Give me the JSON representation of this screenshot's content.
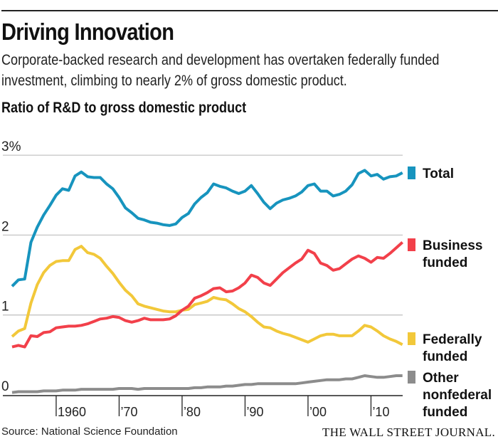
{
  "header": {
    "title": "Driving Innovation",
    "subtitle": "Corporate-backed research and development has overtaken federally funded investment, climbing to nearly 2% of gross domestic product.",
    "chart_label": "Ratio of R&D to gross domestic product"
  },
  "footer": {
    "source": "Source: National Science Foundation",
    "publisher": "THE WALL STREET JOURNAL."
  },
  "chart_data": {
    "type": "line",
    "title": "Ratio of R&D to gross domestic product",
    "xlabel": "",
    "ylabel": "",
    "xlim": [
      1953,
      2015
    ],
    "ylim": [
      0,
      3
    ],
    "y_ticks": [
      {
        "value": 3,
        "label": "3%"
      },
      {
        "value": 2,
        "label": "2"
      },
      {
        "value": 1,
        "label": "1"
      },
      {
        "value": 0,
        "label": "0"
      }
    ],
    "x_ticks": [
      {
        "value": 1960,
        "label": "1960"
      },
      {
        "value": 1970,
        "label": "’70"
      },
      {
        "value": 1980,
        "label": "’80"
      },
      {
        "value": 1990,
        "label": "’90"
      },
      {
        "value": 2000,
        "label": "’00"
      },
      {
        "value": 2010,
        "label": "’10"
      }
    ],
    "grid": true,
    "legend_placement": "right, inline at line ends",
    "start_year": 1953,
    "series": [
      {
        "name": "Total",
        "color": "#1794be",
        "values": [
          1.36,
          1.44,
          1.45,
          1.91,
          2.1,
          2.25,
          2.37,
          2.5,
          2.58,
          2.56,
          2.74,
          2.79,
          2.73,
          2.72,
          2.72,
          2.64,
          2.58,
          2.47,
          2.34,
          2.28,
          2.21,
          2.19,
          2.16,
          2.15,
          2.13,
          2.12,
          2.14,
          2.22,
          2.27,
          2.39,
          2.47,
          2.53,
          2.64,
          2.61,
          2.59,
          2.55,
          2.52,
          2.55,
          2.62,
          2.52,
          2.41,
          2.33,
          2.4,
          2.44,
          2.46,
          2.49,
          2.54,
          2.62,
          2.64,
          2.55,
          2.55,
          2.49,
          2.51,
          2.55,
          2.63,
          2.77,
          2.81,
          2.74,
          2.76,
          2.7,
          2.73,
          2.74,
          2.78
        ]
      },
      {
        "name": "Business funded",
        "color": "#f2404a",
        "values": [
          0.6,
          0.62,
          0.6,
          0.74,
          0.73,
          0.78,
          0.79,
          0.84,
          0.85,
          0.86,
          0.86,
          0.87,
          0.89,
          0.92,
          0.95,
          0.96,
          0.98,
          0.97,
          0.93,
          0.91,
          0.93,
          0.96,
          0.94,
          0.94,
          0.94,
          0.95,
          0.99,
          1.06,
          1.11,
          1.21,
          1.24,
          1.28,
          1.33,
          1.34,
          1.29,
          1.3,
          1.34,
          1.4,
          1.5,
          1.47,
          1.4,
          1.37,
          1.45,
          1.53,
          1.59,
          1.65,
          1.7,
          1.81,
          1.77,
          1.65,
          1.62,
          1.56,
          1.58,
          1.64,
          1.7,
          1.74,
          1.71,
          1.66,
          1.72,
          1.71,
          1.77,
          1.84,
          1.91
        ]
      },
      {
        "name": "Federally funded",
        "color": "#f2c83a",
        "values": [
          0.73,
          0.8,
          0.83,
          1.15,
          1.38,
          1.53,
          1.62,
          1.67,
          1.68,
          1.68,
          1.82,
          1.86,
          1.78,
          1.76,
          1.71,
          1.61,
          1.52,
          1.41,
          1.31,
          1.24,
          1.14,
          1.11,
          1.09,
          1.07,
          1.05,
          1.04,
          1.04,
          1.06,
          1.07,
          1.13,
          1.15,
          1.17,
          1.22,
          1.2,
          1.19,
          1.14,
          1.08,
          1.04,
          0.98,
          0.91,
          0.85,
          0.84,
          0.8,
          0.77,
          0.75,
          0.72,
          0.69,
          0.66,
          0.7,
          0.74,
          0.76,
          0.76,
          0.74,
          0.74,
          0.74,
          0.8,
          0.87,
          0.85,
          0.8,
          0.74,
          0.7,
          0.67,
          0.63
        ]
      },
      {
        "name": "Other nonfederal funded",
        "color": "#8c8c8c",
        "values": [
          0.03,
          0.04,
          0.04,
          0.04,
          0.04,
          0.05,
          0.05,
          0.05,
          0.06,
          0.06,
          0.06,
          0.07,
          0.07,
          0.07,
          0.07,
          0.07,
          0.07,
          0.08,
          0.08,
          0.08,
          0.07,
          0.08,
          0.08,
          0.08,
          0.08,
          0.08,
          0.08,
          0.08,
          0.08,
          0.09,
          0.09,
          0.1,
          0.1,
          0.1,
          0.11,
          0.11,
          0.12,
          0.13,
          0.13,
          0.14,
          0.14,
          0.14,
          0.14,
          0.14,
          0.14,
          0.14,
          0.15,
          0.16,
          0.17,
          0.18,
          0.19,
          0.19,
          0.19,
          0.2,
          0.2,
          0.22,
          0.24,
          0.23,
          0.22,
          0.22,
          0.23,
          0.24,
          0.24
        ]
      }
    ],
    "legend": [
      {
        "series": "Total",
        "label_lines": [
          "Total"
        ]
      },
      {
        "series": "Business funded",
        "label_lines": [
          "Business",
          "funded"
        ]
      },
      {
        "series": "Federally funded",
        "label_lines": [
          "Federally",
          "funded"
        ]
      },
      {
        "series": "Other nonfederal funded",
        "label_lines": [
          "Other",
          "nonfederal",
          "funded"
        ]
      }
    ]
  }
}
